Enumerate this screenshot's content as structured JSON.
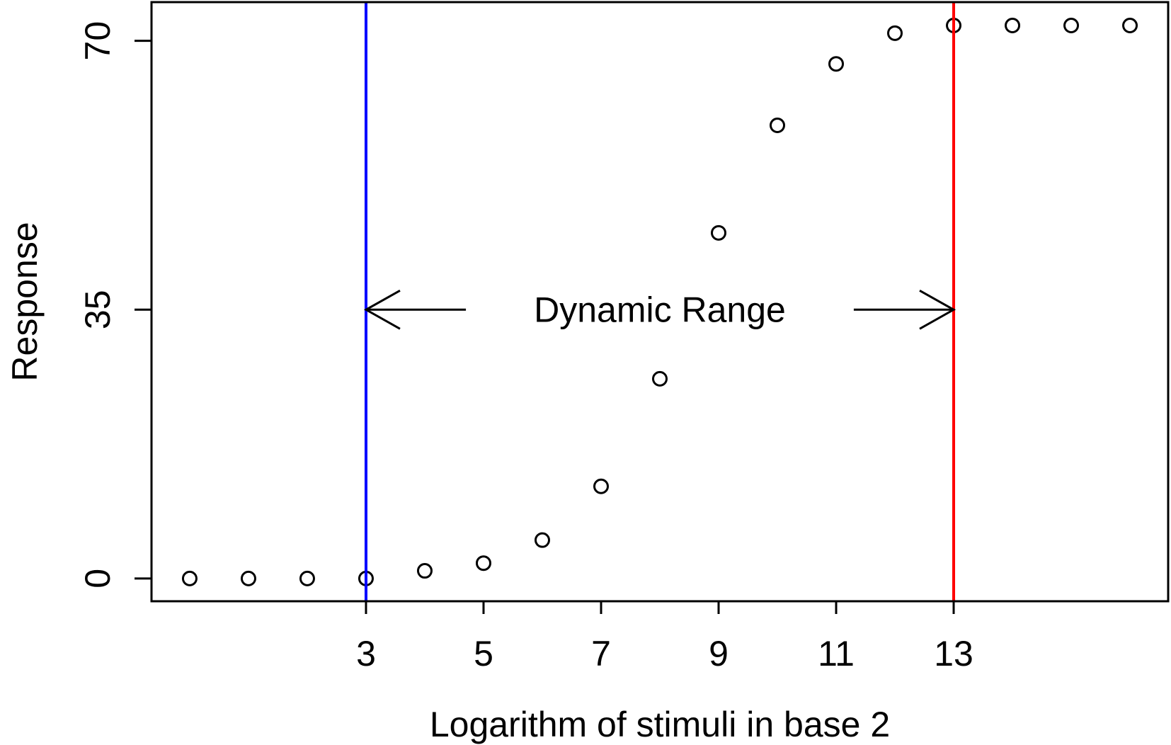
{
  "chart_data": {
    "type": "scatter",
    "title": "",
    "xlabel": "Logarithm of stimuli in base 2",
    "ylabel": "Response",
    "xlim": [
      -0.65,
      16.65
    ],
    "ylim": [
      -2.96,
      75.04
    ],
    "x_ticks": [
      3,
      5,
      7,
      9,
      11,
      13
    ],
    "y_ticks": [
      0,
      35,
      70
    ],
    "grid": false,
    "marker": "open-circle",
    "series": [
      {
        "x": [
          0,
          1,
          2,
          3,
          4,
          5,
          6,
          7,
          8,
          9,
          10,
          11,
          12,
          13,
          14,
          15,
          16
        ],
        "y": [
          0,
          0,
          0,
          0,
          1,
          2,
          5,
          12,
          26,
          45,
          59,
          67,
          71,
          72,
          72,
          72,
          72
        ]
      }
    ],
    "vlines": [
      {
        "x": 3,
        "color": "#0000ff"
      },
      {
        "x": 13,
        "color": "#ff0000"
      }
    ],
    "annotation": {
      "text": "Dynamic Range",
      "y": 35,
      "from_x": 3,
      "to_x": 13,
      "color": "#000000"
    }
  }
}
